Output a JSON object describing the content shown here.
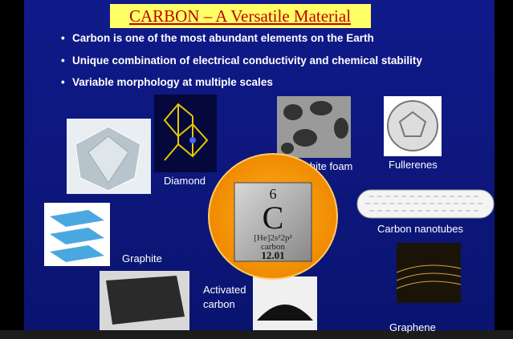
{
  "slide": {
    "title": "CARBON – A Versatile Material",
    "bullets": [
      "Carbon is one of the most abundant elements on the Earth",
      "Unique combination of electrical conductivity and chemical stability",
      "Variable morphology at multiple scales"
    ],
    "element": {
      "number": "6",
      "symbol": "C",
      "configuration": "[He]2s²2p²",
      "name": "carbon",
      "mass": "12.01"
    },
    "labels": {
      "diamond": "Diamond",
      "graphite_foam": "Graphite foam",
      "fullerenes": "Fullerenes",
      "nanotubes": "Carbon nanotubes",
      "graphite": "Graphite",
      "activated_carbon": [
        "Activated",
        "carbon"
      ],
      "graphene": "Graphene"
    }
  }
}
